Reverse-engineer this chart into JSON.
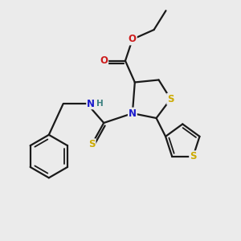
{
  "bg_color": "#ebebeb",
  "bond_color": "#1a1a1a",
  "bond_width": 1.6,
  "atom_colors": {
    "S": "#ccaa00",
    "N": "#1a1acc",
    "O": "#cc1a1a",
    "H": "#3a8080"
  },
  "font_size": 8.5
}
